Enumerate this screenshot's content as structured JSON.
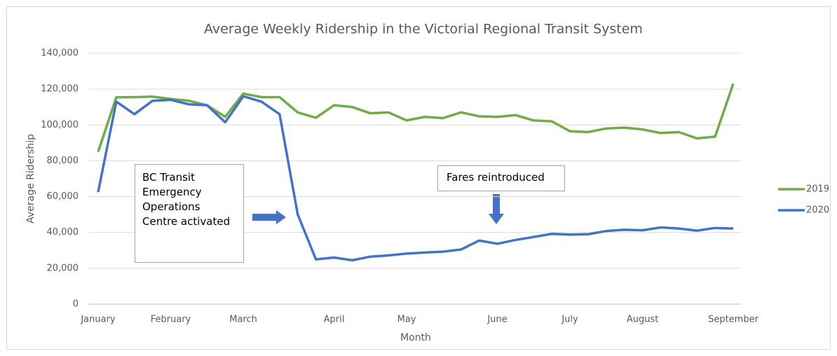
{
  "chart_data": {
    "type": "line",
    "title": "Average Weekly Ridership in the Victorial Regional Transit System",
    "x_label": "Month",
    "y_label": "Average Ridership",
    "categories": [
      "January",
      null,
      null,
      null,
      "February",
      null,
      null,
      null,
      "March",
      null,
      null,
      null,
      null,
      "April",
      null,
      null,
      null,
      "May",
      null,
      null,
      null,
      null,
      "June",
      null,
      null,
      null,
      "July",
      null,
      null,
      null,
      "August",
      null,
      null,
      null,
      null,
      "September"
    ],
    "series": [
      {
        "name": "2019",
        "color": "#70ad47",
        "values": [
          85000,
          115400,
          115500,
          115800,
          114500,
          113500,
          111000,
          104500,
          117500,
          115500,
          115500,
          107000,
          104000,
          111000,
          110000,
          106500,
          107000,
          102500,
          104500,
          103800,
          107000,
          104800,
          104500,
          105500,
          102500,
          102000,
          96500,
          96000,
          98000,
          98500,
          97500,
          95500,
          96000,
          92500,
          93500,
          123000
        ]
      },
      {
        "name": "2020",
        "color": "#4472c4",
        "values": [
          62500,
          113000,
          106000,
          113500,
          114000,
          111500,
          111000,
          101500,
          116000,
          113000,
          106000,
          50000,
          25000,
          26000,
          24500,
          26500,
          27200,
          28200,
          28800,
          29300,
          30500,
          35500,
          33700,
          35800,
          37500,
          39200,
          38800,
          39000,
          40800,
          41500,
          41200,
          42800,
          42200,
          41000,
          42500,
          42200
        ]
      }
    ],
    "ylim": [
      0,
      140000
    ],
    "yticks": [
      0,
      {
        "value": 20000,
        "label": "20,000"
      },
      {
        "value": 40000,
        "label": "40,000"
      },
      {
        "value": 60000,
        "label": "60,000"
      },
      {
        "value": 80000,
        "label": "80,000"
      },
      {
        "value": 100000,
        "label": "100,000"
      },
      {
        "value": 120000,
        "label": "120,000"
      },
      {
        "value": 140000,
        "label": "140,000"
      }
    ],
    "grid": true,
    "legend": "right",
    "annotations": [
      "BC Transit Emergency Operations Centre activated",
      "Fares reintroduced"
    ]
  }
}
